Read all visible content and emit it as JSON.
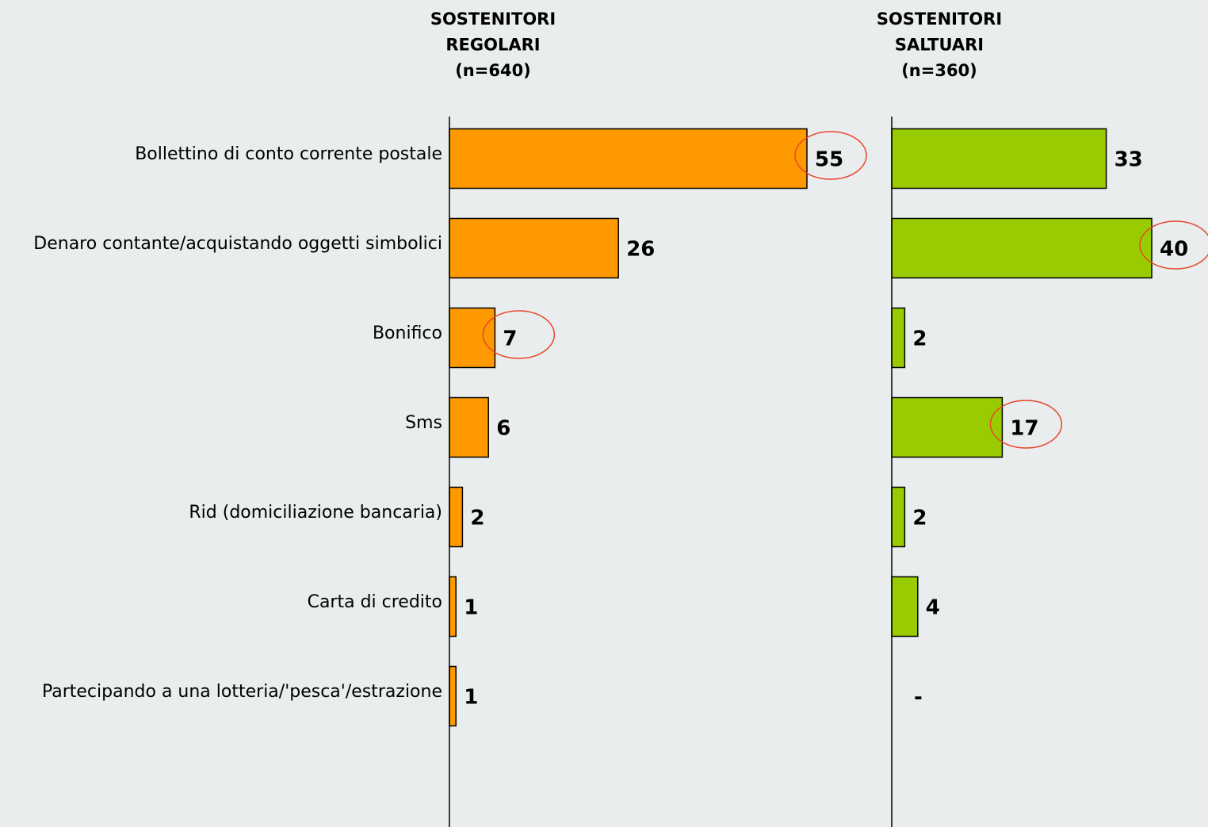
{
  "chart_data": [
    {
      "type": "bar",
      "orientation": "horizontal",
      "title": [
        "SOSTENITORI",
        "REGOLARI",
        "(n=640)"
      ],
      "categories": [
        "Bollettino di conto corrente postale",
        "Denaro contante/acquistando oggetti simbolici",
        "Bonifico",
        "Sms",
        "Rid (domiciliazione bancaria)",
        "Carta di credito",
        "Partecipando a una lotteria/'pesca'/estrazione"
      ],
      "values": [
        55,
        26,
        7,
        6,
        2,
        1,
        1
      ],
      "color": "#ff9900",
      "highlight": [
        true,
        false,
        true,
        false,
        false,
        false,
        false
      ],
      "xlim": [
        0,
        55
      ]
    },
    {
      "type": "bar",
      "orientation": "horizontal",
      "title": [
        "SOSTENITORI",
        "SALTUARI",
        "(n=360)"
      ],
      "values": [
        33,
        40,
        2,
        17,
        2,
        4,
        null
      ],
      "value_labels": [
        "33",
        "40",
        "2",
        "17",
        "2",
        "4",
        "-"
      ],
      "color": "#99cc00",
      "highlight": [
        false,
        true,
        false,
        true,
        false,
        false,
        false
      ],
      "xlim": [
        0,
        55
      ]
    }
  ]
}
